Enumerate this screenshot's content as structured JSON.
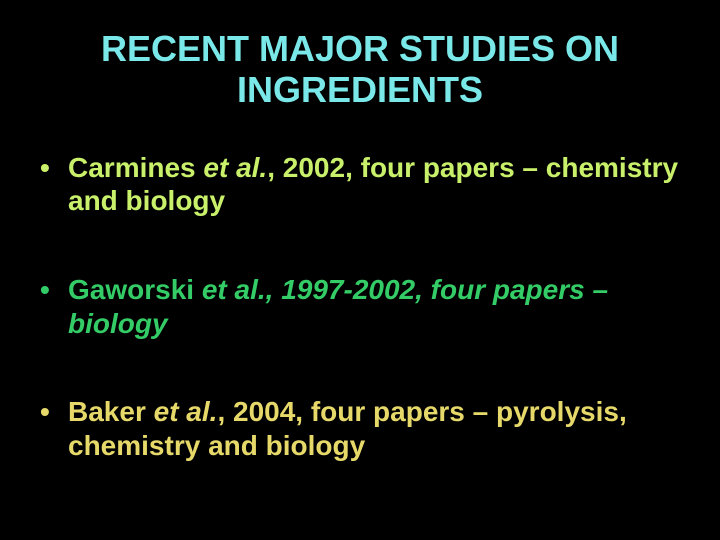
{
  "colors": {
    "background": "#000000",
    "title_color": "#7ae8e8",
    "bullet1_color": "#c9f06a",
    "bullet2_color": "#33cc66",
    "bullet3_color": "#e6d96a"
  },
  "title": "RECENT MAJOR STUDIES ON INGREDIENTS",
  "bullets": [
    {
      "lead": "Carmines ",
      "italic": "et al.",
      "tail": ", 2002, four papers – chemistry and biology"
    },
    {
      "lead": "Gaworski ",
      "italic": "et al., 1997-2002, four papers – biology",
      "tail": ""
    },
    {
      "lead": "Baker ",
      "italic": "et al.",
      "tail": ", 2004, four papers – pyrolysis, chemistry and biology"
    }
  ]
}
